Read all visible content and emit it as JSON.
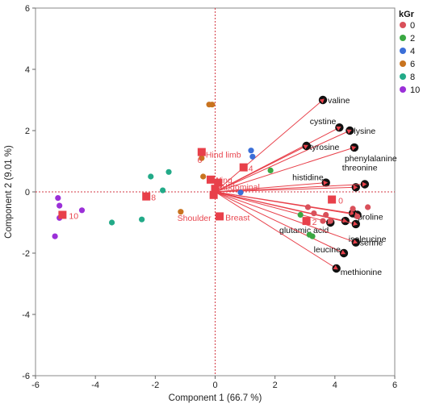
{
  "chart_data": {
    "type": "scatter",
    "subtype": "pca-biplot",
    "xlabel": "Component 1  (66.7 %)",
    "ylabel": "Component 2  (9.01 %)",
    "xlim": [
      -6,
      6
    ],
    "ylim": [
      -6,
      6
    ],
    "xticks": [
      "-6",
      "-4",
      "-2",
      "0",
      "2",
      "4",
      "6"
    ],
    "yticks": [
      "-6",
      "-4",
      "-2",
      "0",
      "2",
      "4",
      "6"
    ],
    "reference_lines": {
      "x": 0,
      "y": 0,
      "style": "dotted",
      "color": "#d33a44"
    },
    "legend": {
      "title": "kGr",
      "placement": "top-right",
      "entries": [
        {
          "label": "0",
          "color": "#d9505a"
        },
        {
          "label": "2",
          "color": "#3aa842"
        },
        {
          "label": "4",
          "color": "#3b6fd8"
        },
        {
          "label": "6",
          "color": "#c8731f"
        },
        {
          "label": "8",
          "color": "#22aa88"
        },
        {
          "label": "10",
          "color": "#9b30d8"
        }
      ]
    },
    "series": [
      {
        "name": "0",
        "color": "#d9505a",
        "points": [
          [
            3.1,
            -0.5
          ],
          [
            3.6,
            -0.95
          ],
          [
            3.7,
            -0.75
          ],
          [
            3.85,
            -0.95
          ],
          [
            4.6,
            -0.55
          ],
          [
            4.75,
            -0.8
          ],
          [
            5.1,
            -0.5
          ],
          [
            3.3,
            -0.7
          ]
        ]
      },
      {
        "name": "2",
        "color": "#3aa842",
        "points": [
          [
            1.85,
            0.7
          ],
          [
            2.85,
            -0.75
          ],
          [
            3.25,
            -1.45
          ],
          [
            3.15,
            -1.4
          ]
        ]
      },
      {
        "name": "4",
        "color": "#3b6fd8",
        "points": [
          [
            1.2,
            1.35
          ],
          [
            1.25,
            1.15
          ],
          [
            0.85,
            -0.02
          ]
        ]
      },
      {
        "name": "6",
        "color": "#c8731f",
        "points": [
          [
            -0.2,
            2.85
          ],
          [
            -0.1,
            2.85
          ],
          [
            -0.45,
            1.1
          ],
          [
            -0.4,
            0.5
          ],
          [
            -1.15,
            -0.65
          ]
        ]
      },
      {
        "name": "8",
        "color": "#22aa88",
        "points": [
          [
            -2.15,
            0.5
          ],
          [
            -1.55,
            0.65
          ],
          [
            -1.75,
            0.05
          ],
          [
            -2.45,
            -0.9
          ],
          [
            -3.45,
            -1.0
          ]
        ]
      },
      {
        "name": "10",
        "color": "#9b30d8",
        "points": [
          [
            -5.25,
            -0.2
          ],
          [
            -5.2,
            -0.45
          ],
          [
            -5.2,
            -0.85
          ],
          [
            -4.45,
            -0.6
          ],
          [
            -5.35,
            -1.45
          ]
        ]
      }
    ],
    "observation_markers": [
      {
        "label": "Hind limb",
        "point": [
          -0.45,
          1.3
        ]
      },
      {
        "label": "Shoulder",
        "point": [
          -0.05,
          -0.1
        ]
      },
      {
        "label": "Wing",
        "point": [
          -0.15,
          0.4
        ]
      },
      {
        "label": "Abdominal",
        "point": [
          0.1,
          0.3
        ]
      },
      {
        "label": "Breast",
        "point": [
          0.15,
          -0.8
        ]
      },
      {
        "label": "0",
        "point": [
          3.9,
          -0.25
        ]
      },
      {
        "label": "2",
        "point": [
          3.05,
          -0.95
        ]
      },
      {
        "label": "4",
        "point": [
          0.95,
          0.8
        ]
      },
      {
        "label": "6",
        "point": [
          0.0,
          0.1
        ]
      },
      {
        "label": "8",
        "point": [
          -2.3,
          -0.15
        ]
      },
      {
        "label": "10",
        "point": [
          -5.1,
          -0.75
        ]
      }
    ],
    "loadings": [
      {
        "label": "valine",
        "point": [
          3.6,
          3.0
        ]
      },
      {
        "label": "cystine",
        "point": [
          4.15,
          2.1
        ]
      },
      {
        "label": "lysine",
        "point": [
          4.5,
          2.0
        ]
      },
      {
        "label": "tyrosine",
        "point": [
          3.05,
          1.5
        ]
      },
      {
        "label": "phenylalanine",
        "point": [
          4.65,
          1.45
        ]
      },
      {
        "label": "histidine",
        "point": [
          3.7,
          0.3
        ]
      },
      {
        "label": "threonine",
        "point": [
          4.7,
          0.15
        ]
      },
      {
        "label": "",
        "point": [
          5.0,
          0.25
        ]
      },
      {
        "label": "proline",
        "point": [
          4.6,
          -0.7
        ]
      },
      {
        "label": "",
        "point": [
          4.75,
          -0.75
        ]
      },
      {
        "label": "",
        "point": [
          4.35,
          -0.95
        ]
      },
      {
        "label": "glutamic acid",
        "point": [
          3.85,
          -1.0
        ]
      },
      {
        "label": "isoleucine",
        "point": [
          4.7,
          -1.05
        ]
      },
      {
        "label": "serine",
        "point": [
          4.7,
          -1.65
        ]
      },
      {
        "label": "leucine",
        "point": [
          4.3,
          -2.0
        ]
      },
      {
        "label": "methionine",
        "point": [
          4.05,
          -2.5
        ]
      }
    ]
  }
}
